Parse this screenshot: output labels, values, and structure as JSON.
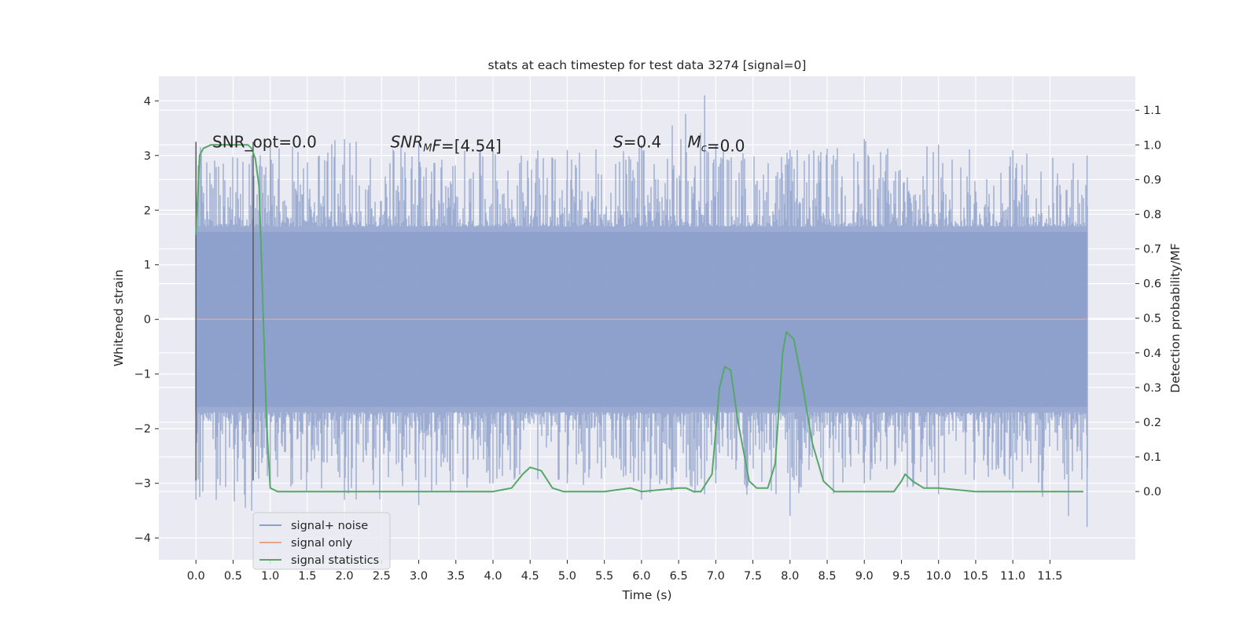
{
  "chart_data": {
    "type": "line",
    "title": "stats at each timestep for test data 3274 [signal=0]",
    "xlabel": "Time (s)",
    "ylabel": "Whitened strain",
    "ylabel_right": "Detection probability/MF",
    "xlim": [
      -0.5,
      12.65
    ],
    "ylim": [
      -4.4,
      4.45
    ],
    "ylim_right": [
      -0.197,
      1.198
    ],
    "grid": true,
    "legend_position": "lower-left",
    "x_ticks": [
      0.0,
      0.5,
      1.0,
      1.5,
      2.0,
      2.5,
      3.0,
      3.5,
      4.0,
      4.5,
      5.0,
      5.5,
      6.0,
      6.5,
      7.0,
      7.5,
      8.0,
      8.5,
      9.0,
      9.5,
      10.0,
      10.5,
      11.0,
      11.5
    ],
    "x_tick_labels": [
      "0.0",
      "0.5",
      "1.0",
      "1.5",
      "2.0",
      "2.5",
      "3.0",
      "3.5",
      "4.0",
      "4.5",
      "5.0",
      "5.5",
      "6.0",
      "6.5",
      "7.0",
      "7.5",
      "8.0",
      "8.5",
      "9.0",
      "9.5",
      "10.0",
      "10.5",
      "11.0",
      "11.5"
    ],
    "y_ticks": [
      -4,
      -3,
      -2,
      -1,
      0,
      1,
      2,
      3,
      4
    ],
    "y_tick_labels": [
      "−4",
      "−3",
      "−2",
      "−1",
      "0",
      "1",
      "2",
      "3",
      "4"
    ],
    "y_ticks_right": [
      0.0,
      0.1,
      0.2,
      0.3,
      0.4,
      0.5,
      0.6,
      0.7,
      0.8,
      0.9,
      1.0,
      1.1
    ],
    "y_tick_labels_right": [
      "0.0",
      "0.1",
      "0.2",
      "0.3",
      "0.4",
      "0.5",
      "0.6",
      "0.7",
      "0.8",
      "0.9",
      "1.0",
      "1.1"
    ],
    "series": [
      {
        "name": "signal+ noise",
        "axis": "left",
        "color": "#8da0cb",
        "description": "dense whitened noise, roughly uniform amplitude ~±2.4 with spikes up to ~±3.5",
        "x_range": [
          0.0,
          12.0
        ],
        "envelope": {
          "x": [
            0.0,
            0.75,
            1.0,
            2.0,
            3.0,
            4.0,
            5.0,
            6.0,
            6.85,
            7.0,
            8.0,
            9.0,
            10.0,
            11.0,
            12.0
          ],
          "upper": [
            3.2,
            3.0,
            3.2,
            3.3,
            3.2,
            3.1,
            3.1,
            3.2,
            4.1,
            3.2,
            3.1,
            3.3,
            3.2,
            3.1,
            3.0
          ],
          "lower": [
            -3.3,
            -3.5,
            -3.0,
            -3.3,
            -3.4,
            -3.0,
            -3.0,
            -3.3,
            -3.2,
            -3.0,
            -3.6,
            -3.0,
            -3.2,
            -3.1,
            -3.8
          ]
        }
      },
      {
        "name": "signal only",
        "axis": "left",
        "color": "#e8a48a",
        "x": [
          0.0,
          12.0
        ],
        "y": [
          0.0,
          0.0
        ]
      },
      {
        "name": "signal statistics",
        "axis": "right",
        "color": "#55a868",
        "x": [
          0.0,
          0.05,
          0.1,
          0.2,
          0.3,
          0.5,
          0.7,
          0.75,
          0.8,
          0.85,
          0.9,
          0.95,
          1.0,
          1.1,
          1.3,
          1.5,
          2.0,
          3.0,
          3.5,
          4.0,
          4.25,
          4.4,
          4.5,
          4.65,
          4.8,
          4.95,
          5.1,
          5.5,
          5.85,
          6.0,
          6.5,
          6.6,
          6.7,
          6.8,
          6.95,
          7.05,
          7.12,
          7.2,
          7.3,
          7.45,
          7.55,
          7.7,
          7.8,
          7.9,
          7.95,
          8.05,
          8.15,
          8.3,
          8.45,
          8.6,
          8.8,
          9.0,
          9.4,
          9.5,
          9.55,
          9.65,
          9.8,
          10.0,
          10.5,
          11.0,
          11.95
        ],
        "y": [
          0.74,
          0.97,
          0.99,
          1.0,
          1.0,
          1.0,
          1.0,
          0.99,
          0.96,
          0.88,
          0.55,
          0.2,
          0.01,
          0.0,
          0.0,
          0.0,
          0.0,
          0.0,
          0.0,
          0.0,
          0.01,
          0.05,
          0.07,
          0.06,
          0.01,
          0.0,
          0.0,
          0.0,
          0.01,
          0.0,
          0.01,
          0.01,
          0.0,
          0.0,
          0.05,
          0.3,
          0.36,
          0.35,
          0.2,
          0.03,
          0.01,
          0.01,
          0.08,
          0.4,
          0.46,
          0.44,
          0.33,
          0.14,
          0.03,
          0.0,
          0.0,
          0.0,
          0.0,
          0.03,
          0.05,
          0.03,
          0.01,
          0.01,
          0.0,
          0.0,
          0.0
        ]
      }
    ],
    "vertical_lines": [
      {
        "x": 0.0,
        "y_range": [
          -2.95,
          3.25
        ],
        "color": "#555555"
      },
      {
        "x": 0.77,
        "y_range": [
          -2.95,
          3.25
        ],
        "color": "#555555"
      }
    ],
    "annotations": [
      {
        "id": "snr-opt",
        "text": "SNR_opt=0.0",
        "x": 0.22,
        "y": 3.15
      },
      {
        "id": "snr-mf",
        "prefix_italic": "SNR",
        "sub": "M",
        "suffix_italic": "F",
        "suffix": "=[4.54]",
        "x": 2.62,
        "y": 3.15
      },
      {
        "id": "s-val",
        "prefix_italic": "S",
        "suffix": "=0.4",
        "x": 5.62,
        "y": 3.15
      },
      {
        "id": "mc-val",
        "prefix_italic": "M",
        "sub": "c",
        "suffix": "=0.0",
        "x": 6.62,
        "y": 3.15
      }
    ],
    "legend": [
      {
        "label": "signal+ noise",
        "color": "#8da0cb"
      },
      {
        "label": "signal only",
        "color": "#e8a48a"
      },
      {
        "label": "signal statistics",
        "color": "#55a868"
      }
    ]
  }
}
